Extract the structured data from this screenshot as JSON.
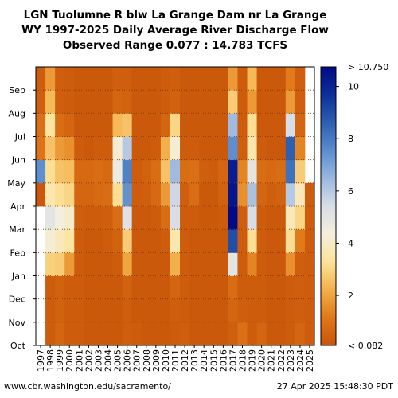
{
  "header": {
    "title_line1": "LGN Tuolumne R blw La Grange Dam nr La Grange",
    "title_line2": "WY 1997-2025 Daily Average River Discharge Flow",
    "title_line3": "Observed Range 0.077 : 14.783 TCFS"
  },
  "footer": {
    "source_url": "www.cbr.washington.edu/sacramento/",
    "timestamp": "27 Apr 2025 15:48:30 PDT"
  },
  "chart_data": {
    "type": "heatmap",
    "title": "LGN Tuolumne R blw La Grange Dam nr La Grange",
    "subtitle": "WY 1997-2025 Daily Average River Discharge Flow",
    "range_text": "Observed Range 0.077 : 14.783 TCFS",
    "x_categories": [
      "1997",
      "1998",
      "1999",
      "2000",
      "2001",
      "2002",
      "2003",
      "2004",
      "2005",
      "2006",
      "2007",
      "2008",
      "2009",
      "2010",
      "2011",
      "2012",
      "2013",
      "2014",
      "2015",
      "2016",
      "2017",
      "2018",
      "2019",
      "2020",
      "2021",
      "2022",
      "2023",
      "2024",
      "2025"
    ],
    "y_categories": [
      "Oct",
      "Nov",
      "Dec",
      "Jan",
      "Feb",
      "Mar",
      "Apr",
      "May",
      "Jun",
      "Jul",
      "Aug",
      "Sep"
    ],
    "colorbar": {
      "min_label": "< 0.082",
      "max_label": "> 10.750",
      "ticks": [
        2,
        4,
        6,
        8,
        10
      ],
      "range": [
        0.082,
        10.75
      ],
      "colors": [
        "#c8550a",
        "#e07818",
        "#f3b04a",
        "#fde39a",
        "#f4efdc",
        "#d8dee8",
        "#9ab8e0",
        "#5a8ccf",
        "#2d5fb2",
        "#0d2f9a",
        "#000a87"
      ]
    },
    "series": [
      {
        "year": "1997",
        "values": [
          null,
          null,
          null,
          null,
          null,
          null,
          0.15,
          7.5,
          1.0,
          0.9,
          0.4,
          0.3
        ]
      },
      {
        "year": "1998",
        "values": [
          0.3,
          0.3,
          0.3,
          2.9,
          4.2,
          5.0,
          3.6,
          3.2,
          2.6,
          3.4,
          2.4,
          1.8
        ]
      },
      {
        "year": "1999",
        "values": [
          0.6,
          0.5,
          0.5,
          2.8,
          3.8,
          4.4,
          3.2,
          2.6,
          1.8,
          0.8,
          0.4,
          0.4
        ]
      },
      {
        "year": "2000",
        "values": [
          0.3,
          0.3,
          0.3,
          1.8,
          3.4,
          4.1,
          3.0,
          2.5,
          1.6,
          0.6,
          0.3,
          0.3
        ]
      },
      {
        "year": "2001",
        "values": [
          0.3,
          0.3,
          0.3,
          0.3,
          0.3,
          0.4,
          0.6,
          0.7,
          0.3,
          0.2,
          0.2,
          0.2
        ]
      },
      {
        "year": "2002",
        "values": [
          0.2,
          0.2,
          0.2,
          0.2,
          0.2,
          0.3,
          0.6,
          0.7,
          0.2,
          0.2,
          0.2,
          0.2
        ]
      },
      {
        "year": "2003",
        "values": [
          0.2,
          0.2,
          0.2,
          0.2,
          0.2,
          0.3,
          0.7,
          0.8,
          0.3,
          0.2,
          0.2,
          0.2
        ]
      },
      {
        "year": "2004",
        "values": [
          0.2,
          0.2,
          0.2,
          0.2,
          0.3,
          0.4,
          0.8,
          0.7,
          0.3,
          0.2,
          0.2,
          0.2
        ]
      },
      {
        "year": "2005",
        "values": [
          0.2,
          0.2,
          0.2,
          0.3,
          0.5,
          0.8,
          3.2,
          4.6,
          4.2,
          2.4,
          0.6,
          0.4
        ]
      },
      {
        "year": "2006",
        "values": [
          0.4,
          0.4,
          0.5,
          2.0,
          2.8,
          5.2,
          7.4,
          7.8,
          6.0,
          2.6,
          0.5,
          0.4
        ]
      },
      {
        "year": "2007",
        "values": [
          0.3,
          0.2,
          0.2,
          0.2,
          0.2,
          0.2,
          0.3,
          0.3,
          0.2,
          0.2,
          0.2,
          0.2
        ]
      },
      {
        "year": "2008",
        "values": [
          0.2,
          0.2,
          0.2,
          0.2,
          0.2,
          0.2,
          0.4,
          0.5,
          0.2,
          0.2,
          0.2,
          0.2
        ]
      },
      {
        "year": "2009",
        "values": [
          0.2,
          0.2,
          0.2,
          0.2,
          0.2,
          0.3,
          0.7,
          0.8,
          0.3,
          0.2,
          0.2,
          0.2
        ]
      },
      {
        "year": "2010",
        "values": [
          0.2,
          0.2,
          0.2,
          0.2,
          0.3,
          0.8,
          1.8,
          2.6,
          2.2,
          0.6,
          0.3,
          0.3
        ]
      },
      {
        "year": "2011",
        "values": [
          0.3,
          0.4,
          0.6,
          2.2,
          3.6,
          5.4,
          5.6,
          6.4,
          4.2,
          3.0,
          0.5,
          0.4
        ]
      },
      {
        "year": "2012",
        "values": [
          0.4,
          0.3,
          0.3,
          0.3,
          0.3,
          0.3,
          0.4,
          0.8,
          0.3,
          0.2,
          0.2,
          0.2
        ]
      },
      {
        "year": "2013",
        "values": [
          0.2,
          0.2,
          0.2,
          0.2,
          0.2,
          0.3,
          0.8,
          0.9,
          0.3,
          0.2,
          0.2,
          0.2
        ]
      },
      {
        "year": "2014",
        "values": [
          0.2,
          0.2,
          0.2,
          0.2,
          0.2,
          0.2,
          0.2,
          0.4,
          0.2,
          0.2,
          0.2,
          0.2
        ]
      },
      {
        "year": "2015",
        "values": [
          0.2,
          0.2,
          0.2,
          0.2,
          0.2,
          0.2,
          0.2,
          0.3,
          0.2,
          0.2,
          0.2,
          0.2
        ]
      },
      {
        "year": "2016",
        "values": [
          0.2,
          0.2,
          0.2,
          0.2,
          0.2,
          0.3,
          0.5,
          0.6,
          0.2,
          0.2,
          0.2,
          0.2
        ]
      },
      {
        "year": "2017",
        "values": [
          0.4,
          0.6,
          0.8,
          5.0,
          9.0,
          10.8,
          10.4,
          10.2,
          7.5,
          6.4,
          2.8,
          1.8
        ]
      },
      {
        "year": "2018",
        "values": [
          0.9,
          0.4,
          0.3,
          0.3,
          0.3,
          0.4,
          1.6,
          1.4,
          0.4,
          0.3,
          0.3,
          0.3
        ]
      },
      {
        "year": "2019",
        "values": [
          0.3,
          0.3,
          0.3,
          1.4,
          3.2,
          5.4,
          6.2,
          5.0,
          3.6,
          3.2,
          1.8,
          2.4
        ]
      },
      {
        "year": "2020",
        "values": [
          0.6,
          0.3,
          0.3,
          0.3,
          0.3,
          0.3,
          0.6,
          0.8,
          0.3,
          0.2,
          0.2,
          0.2
        ]
      },
      {
        "year": "2021",
        "values": [
          0.2,
          0.2,
          0.2,
          0.2,
          0.2,
          0.2,
          0.4,
          0.7,
          0.2,
          0.2,
          0.2,
          0.2
        ]
      },
      {
        "year": "2022",
        "values": [
          0.2,
          0.2,
          0.2,
          0.2,
          0.2,
          0.2,
          0.5,
          0.8,
          0.2,
          0.2,
          0.2,
          0.2
        ]
      },
      {
        "year": "2023",
        "values": [
          0.3,
          0.3,
          0.3,
          1.6,
          3.2,
          3.8,
          6.0,
          8.2,
          8.6,
          5.4,
          1.8,
          1.2
        ]
      },
      {
        "year": "2024",
        "values": [
          0.6,
          0.4,
          0.4,
          0.4,
          1.2,
          3.0,
          3.8,
          2.8,
          1.4,
          0.6,
          0.4,
          0.4
        ]
      },
      {
        "year": "2025",
        "values": [
          0.3,
          0.3,
          0.3,
          0.3,
          0.3,
          0.3,
          0.3,
          null,
          null,
          null,
          null,
          null
        ]
      }
    ]
  }
}
